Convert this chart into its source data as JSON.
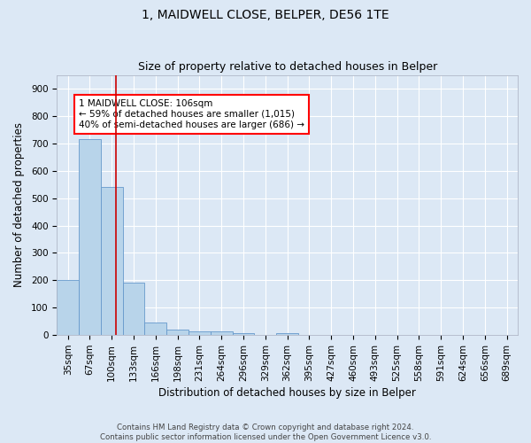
{
  "title": "1, MAIDWELL CLOSE, BELPER, DE56 1TE",
  "subtitle": "Size of property relative to detached houses in Belper",
  "xlabel": "Distribution of detached houses by size in Belper",
  "ylabel": "Number of detached properties",
  "footer_line1": "Contains HM Land Registry data © Crown copyright and database right 2024.",
  "footer_line2": "Contains public sector information licensed under the Open Government Licence v3.0.",
  "bin_labels": [
    "35sqm",
    "67sqm",
    "100sqm",
    "133sqm",
    "166sqm",
    "198sqm",
    "231sqm",
    "264sqm",
    "296sqm",
    "329sqm",
    "362sqm",
    "395sqm",
    "427sqm",
    "460sqm",
    "493sqm",
    "525sqm",
    "558sqm",
    "591sqm",
    "624sqm",
    "656sqm",
    "689sqm"
  ],
  "bar_values": [
    200,
    715,
    540,
    190,
    45,
    20,
    13,
    12,
    8,
    0,
    8,
    0,
    0,
    0,
    0,
    0,
    0,
    0,
    0,
    0,
    0
  ],
  "bar_color": "#b8d4ea",
  "bar_edge_color": "#6699cc",
  "ylim": [
    0,
    950
  ],
  "yticks": [
    0,
    100,
    200,
    300,
    400,
    500,
    600,
    700,
    800,
    900
  ],
  "vline_color": "#cc0000",
  "annotation_text": "1 MAIDWELL CLOSE: 106sqm\n← 59% of detached houses are smaller (1,015)\n40% of semi-detached houses are larger (686) →",
  "bg_color": "#dce8f5",
  "plot_bg_color": "#dce8f5",
  "grid_color": "#ffffff",
  "title_fontsize": 10,
  "subtitle_fontsize": 9,
  "axis_label_fontsize": 8.5,
  "tick_fontsize": 7.5
}
